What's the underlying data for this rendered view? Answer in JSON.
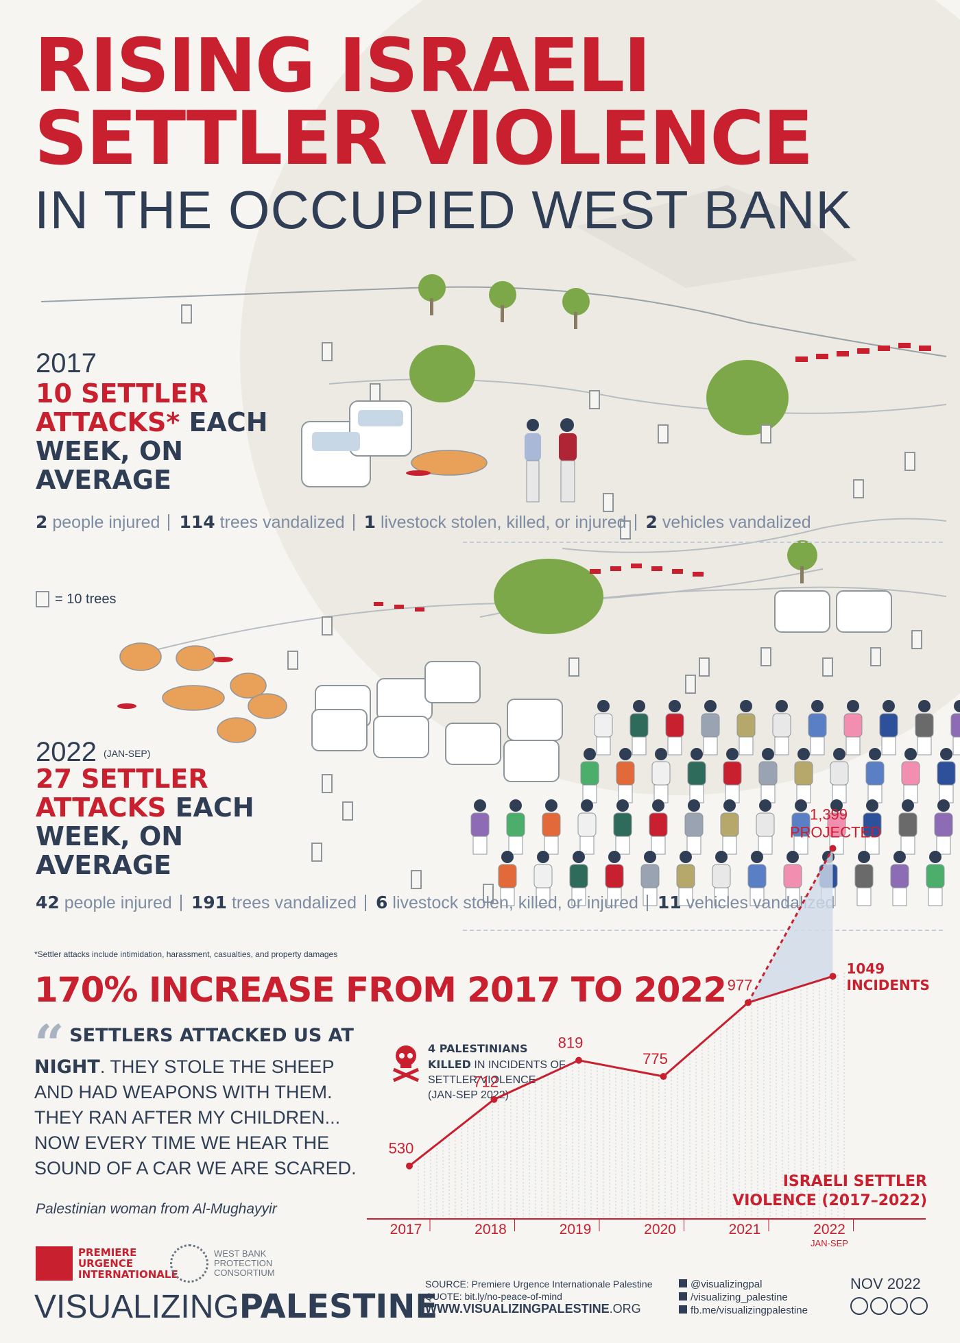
{
  "title": {
    "line1": "RISING ISRAELI",
    "line2": "SETTLER VIOLENCE",
    "line3": "IN THE OCCUPIED WEST BANK"
  },
  "y2017": {
    "year": "2017",
    "head_red": "10 SETTLER ATTACKS*",
    "head_navy": "EACH WEEK, ON AVERAGE",
    "stats": [
      {
        "num": "2",
        "text": "people injured"
      },
      {
        "num": "114",
        "text": "trees vandalized"
      },
      {
        "num": "1",
        "text": "livestock stolen, killed, or injured"
      },
      {
        "num": "2",
        "text": "vehicles vandalized"
      }
    ]
  },
  "legend_trees": "= 10 trees",
  "y2022": {
    "year": "2022",
    "year_note": "(JAN-SEP)",
    "head_red": "27 SETTLER ATTACKS",
    "head_navy": "EACH WEEK, ON AVERAGE",
    "stats": [
      {
        "num": "42",
        "text": "people injured"
      },
      {
        "num": "191",
        "text": "trees vandalized"
      },
      {
        "num": "6",
        "text": "livestock stolen, killed, or injured"
      },
      {
        "num": "11",
        "text": "vehicles vandalized"
      }
    ]
  },
  "footnote": "*Settler attacks include intimidation, harassment, casualties, and property damages",
  "increase": "170% INCREASE FROM 2017 TO 2022",
  "quote": {
    "bold": "SETTLERS ATTACKED US AT NIGHT",
    "rest": ". THEY STOLE THE SHEEP AND HAD WEAPONS WITH THEM. THEY RAN AFTER MY CHILDREN... NOW EVERY TIME WE HEAR THE SOUND OF A CAR WE ARE SCARED.",
    "source": "Palestinian woman from Al-Mughayyir"
  },
  "killed": {
    "line1": "4 PALESTINIANS",
    "line2_bold": "KILLED",
    "line2_rest": " IN INCIDENTS OF",
    "line3": "SETTLER VIOLENCE",
    "line4": "(JAN-SEP 2022)"
  },
  "chart_data": {
    "type": "line",
    "title": "ISRAELI SETTLER VIOLENCE (2017–2022)",
    "x": [
      "2017",
      "2018",
      "2019",
      "2020",
      "2021",
      "2022"
    ],
    "x_note": "JAN-SEP",
    "values": [
      530,
      712,
      819,
      775,
      977,
      1049
    ],
    "value_labels": [
      "530",
      "712",
      "819",
      "775",
      "977",
      "1049 INCIDENTS"
    ],
    "projected": {
      "x": "2022",
      "value": 1399,
      "label_value": "1,399",
      "label_text": "PROJECTED"
    },
    "ylim": [
      400,
      1450
    ],
    "colors": {
      "line": "#c8202f",
      "area": "#cfdbe9"
    }
  },
  "colors": {
    "red": "#c8202f",
    "navy": "#2f3e55",
    "grey": "#7d8ca3",
    "foliage": "#7da84a",
    "sheep": "#e9a15a"
  },
  "footer": {
    "org1": "PREMIERE URGENCE INTERNATIONALE",
    "org2": "WEST BANK PROTECTION CONSORTIUM",
    "brand_light": "VISUALIZING",
    "brand_bold": "PALESTINE",
    "source": "SOURCE: Premiere Urgence Internationale Palestine",
    "quote_link": "QUOTE: bit.ly/no-peace-of-mind",
    "website_bold": "WWW.VISUALIZINGPALESTINE",
    "website_end": ".ORG",
    "twitter": "@visualizingpal",
    "instagram": "/visualizing_palestine",
    "facebook": "fb.me/visualizingpalestine",
    "date": "NOV 2022",
    "license": "cc by nc nd"
  }
}
